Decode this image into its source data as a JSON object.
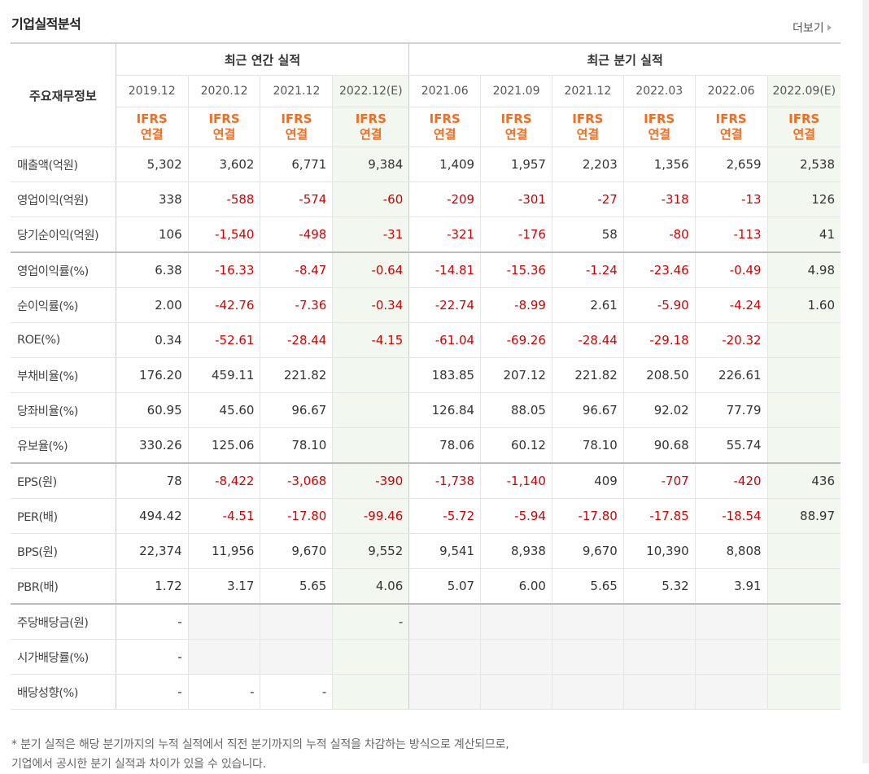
{
  "title": "기업실적분석",
  "more_label": "더보기",
  "header": {
    "row_label": "주요재무정보",
    "group_annual": "최근 연간 실적",
    "group_quarter": "최근 분기 실적",
    "periods": [
      "2019.12",
      "2020.12",
      "2021.12",
      "2022.12(E)",
      "2021.06",
      "2021.09",
      "2021.12",
      "2022.03",
      "2022.06",
      "2022.09(E)"
    ],
    "ifrs": "IFRS",
    "basis": "연결"
  },
  "rows": [
    {
      "label": "매출액(억원)",
      "values": [
        "5,302",
        "3,602",
        "6,771",
        "9,384",
        "1,409",
        "1,957",
        "2,203",
        "1,356",
        "2,659",
        "2,538"
      ]
    },
    {
      "label": "영업이익(억원)",
      "values": [
        "338",
        "-588",
        "-574",
        "-60",
        "-209",
        "-301",
        "-27",
        "-318",
        "-13",
        "126"
      ]
    },
    {
      "label": "당기순이익(억원)",
      "values": [
        "106",
        "-1,540",
        "-498",
        "-31",
        "-321",
        "-176",
        "58",
        "-80",
        "-113",
        "41"
      ]
    },
    {
      "label": "영업이익률(%)",
      "values": [
        "6.38",
        "-16.33",
        "-8.47",
        "-0.64",
        "-14.81",
        "-15.36",
        "-1.24",
        "-23.46",
        "-0.49",
        "4.98"
      ]
    },
    {
      "label": "순이익률(%)",
      "values": [
        "2.00",
        "-42.76",
        "-7.36",
        "-0.34",
        "-22.74",
        "-8.99",
        "2.61",
        "-5.90",
        "-4.24",
        "1.60"
      ]
    },
    {
      "label": "ROE(%)",
      "values": [
        "0.34",
        "-52.61",
        "-28.44",
        "-4.15",
        "-61.04",
        "-69.26",
        "-28.44",
        "-29.18",
        "-20.32",
        ""
      ]
    },
    {
      "label": "부채비율(%)",
      "values": [
        "176.20",
        "459.11",
        "221.82",
        "",
        "183.85",
        "207.12",
        "221.82",
        "208.50",
        "226.61",
        ""
      ]
    },
    {
      "label": "당좌비율(%)",
      "values": [
        "60.95",
        "45.60",
        "96.67",
        "",
        "126.84",
        "88.05",
        "96.67",
        "92.02",
        "77.79",
        ""
      ]
    },
    {
      "label": "유보율(%)",
      "values": [
        "330.26",
        "125.06",
        "78.10",
        "",
        "78.06",
        "60.12",
        "78.10",
        "90.68",
        "55.74",
        ""
      ]
    },
    {
      "label": "EPS(원)",
      "values": [
        "78",
        "-8,422",
        "-3,068",
        "-390",
        "-1,738",
        "-1,140",
        "409",
        "-707",
        "-420",
        "436"
      ]
    },
    {
      "label": "PER(배)",
      "values": [
        "494.42",
        "-4.51",
        "-17.80",
        "-99.46",
        "-5.72",
        "-5.94",
        "-17.80",
        "-17.85",
        "-18.54",
        "88.97"
      ]
    },
    {
      "label": "BPS(원)",
      "values": [
        "22,374",
        "11,956",
        "9,670",
        "9,552",
        "9,541",
        "8,938",
        "9,670",
        "10,390",
        "8,808",
        ""
      ]
    },
    {
      "label": "PBR(배)",
      "values": [
        "1.72",
        "3.17",
        "5.65",
        "4.06",
        "5.07",
        "6.00",
        "5.65",
        "5.32",
        "3.91",
        ""
      ]
    },
    {
      "label": "주당배당금(원)",
      "values": [
        "-",
        "",
        "",
        "-",
        "",
        "",
        "",
        "",
        "",
        ""
      ]
    },
    {
      "label": "시가배당률(%)",
      "values": [
        "-",
        "",
        "",
        "",
        "",
        "",
        "",
        "",
        "",
        ""
      ]
    },
    {
      "label": "배당성향(%)",
      "values": [
        "-",
        "-",
        "-",
        "",
        "",
        "",
        "",
        "",
        "",
        ""
      ]
    }
  ],
  "note_line1": "* 분기 실적은 해당 분기까지의 누적 실적에서 직전 분기까지의 누적 실적을 차감하는 방식으로 계산되므로,",
  "note_line2": "기업에서 공시한 분기 실적과 차이가 있을 수 있습니다."
}
